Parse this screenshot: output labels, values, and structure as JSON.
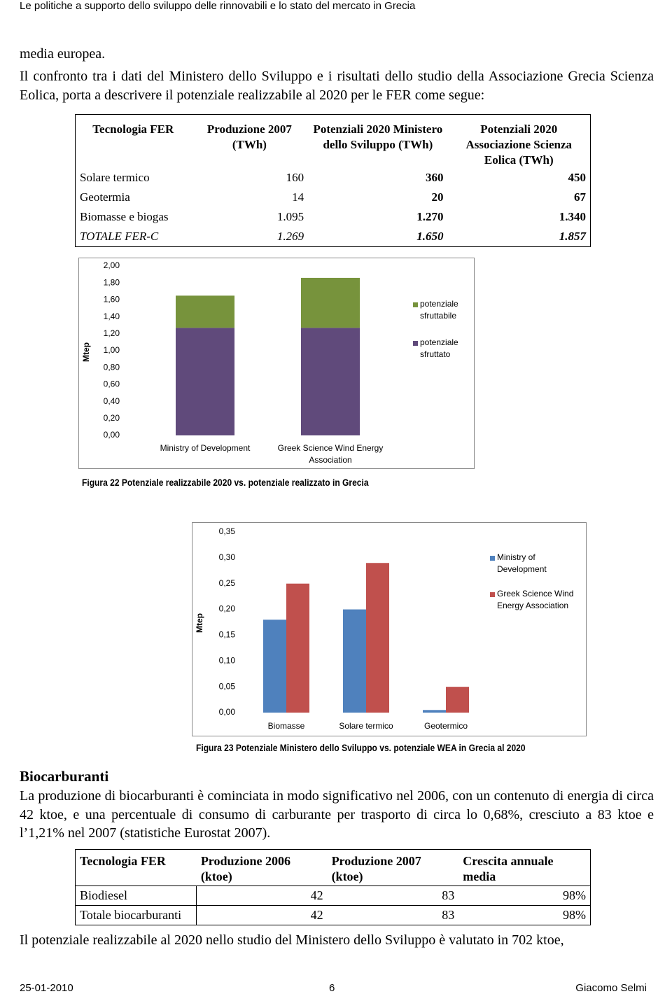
{
  "header": {
    "title": "Le politiche a supporto dello sviluppo delle rinnovabili e lo stato del mercato in Grecia"
  },
  "paragraphs": [
    "media europea.",
    "Il confronto tra i dati del Ministero dello Sviluppo e i risultati dello studio della Associazione Grecia Scienza Eolica, porta a descrivere il potenziale realizzabile al 2020 per le FER come segue:"
  ],
  "table1": {
    "headers": [
      "Tecnologia FER",
      "Produzione 2007 (TWh)",
      "Potenziali 2020 Ministero dello Sviluppo (TWh)",
      "Potenziali 2020 Associazione Scienza Eolica (TWh)"
    ],
    "rows": [
      [
        "Solare termico",
        "160",
        "360",
        "450"
      ],
      [
        "Geotermia",
        "14",
        "20",
        "67"
      ],
      [
        "Biomasse e biogas",
        "1.095",
        "1.270",
        "1.340"
      ],
      [
        "TOTALE FER-C",
        "1.269",
        "1.650",
        "1.857"
      ]
    ]
  },
  "figure22": {
    "type": "bar",
    "stacked": true,
    "ylabel": "Mtep",
    "categories": [
      "Ministry of Development",
      "Greek Science Wind Energy Association"
    ],
    "series": [
      {
        "name": "potenziale sfruttato",
        "color": "#604a7b",
        "values": [
          1.27,
          1.27
        ]
      },
      {
        "name": "potenziale sfruttabile",
        "color": "#77933c",
        "values": [
          0.38,
          0.59
        ]
      }
    ],
    "ylim": [
      0,
      2
    ],
    "yticks": [
      {
        "value": 0,
        "label": "0,00"
      },
      {
        "value": 0.2,
        "label": "0,20"
      },
      {
        "value": 0.4,
        "label": "0,40"
      },
      {
        "value": 0.6,
        "label": "0,60"
      },
      {
        "value": 0.8,
        "label": "0,80"
      },
      {
        "value": 1.0,
        "label": "1,00"
      },
      {
        "value": 1.2,
        "label": "1,20"
      },
      {
        "value": 1.4,
        "label": "1,40"
      },
      {
        "value": 1.6,
        "label": "1,60"
      },
      {
        "value": 1.8,
        "label": "1,80"
      },
      {
        "value": 2.0,
        "label": "2,00"
      }
    ],
    "caption": "Figura 22 Potenziale realizzabile 2020 vs. potenziale realizzato in Grecia"
  },
  "figure23": {
    "type": "bar",
    "stacked": false,
    "ylabel": "Mtep",
    "categories": [
      "Biomasse",
      "Solare termico",
      "Geotermico"
    ],
    "series": [
      {
        "name": "Ministry of Development",
        "color": "#4f81bd",
        "values": [
          0.18,
          0.2,
          0.005
        ]
      },
      {
        "name": "Greek Science Wind Energy Association",
        "color": "#c0504d",
        "values": [
          0.25,
          0.29,
          0.05
        ]
      }
    ],
    "ylim": [
      0,
      0.35
    ],
    "yticks": [
      {
        "value": 0,
        "label": "0,00"
      },
      {
        "value": 0.05,
        "label": "0,05"
      },
      {
        "value": 0.1,
        "label": "0,10"
      },
      {
        "value": 0.15,
        "label": "0,15"
      },
      {
        "value": 0.2,
        "label": "0,20"
      },
      {
        "value": 0.25,
        "label": "0,25"
      },
      {
        "value": 0.3,
        "label": "0,30"
      },
      {
        "value": 0.35,
        "label": "0,35"
      }
    ],
    "caption": "Figura 23 Potenziale Ministero dello Sviluppo vs. potenziale WEA in Grecia al 2020"
  },
  "section": {
    "heading": "Biocarburanti",
    "paragraph": "La produzione di biocarburanti è cominciata in modo significativo nel 2006, con un contenuto di energia di circa 42 ktoe, e una percentuale di consumo di carburante per trasporto di circa lo 0,68%, cresciuto a 83 ktoe e l’1,21% nel 2007 (statistiche Eurostat 2007)."
  },
  "table2": {
    "headers": [
      "Tecnologia FER",
      "Produzione 2006 (ktoe)",
      "Produzione 2007 (ktoe)",
      "Crescita annuale media"
    ],
    "rows": [
      [
        "Biodiesel",
        "42",
        "83",
        "98%"
      ],
      [
        "Totale biocarburanti",
        "42",
        "83",
        "98%"
      ]
    ]
  },
  "closing": "Il potenziale realizzabile al 2020 nello studio del Ministero dello Sviluppo è valutato in 702 ktoe,",
  "footer": {
    "date": "25-01-2010",
    "page": "6",
    "author": "Giacomo Selmi"
  }
}
